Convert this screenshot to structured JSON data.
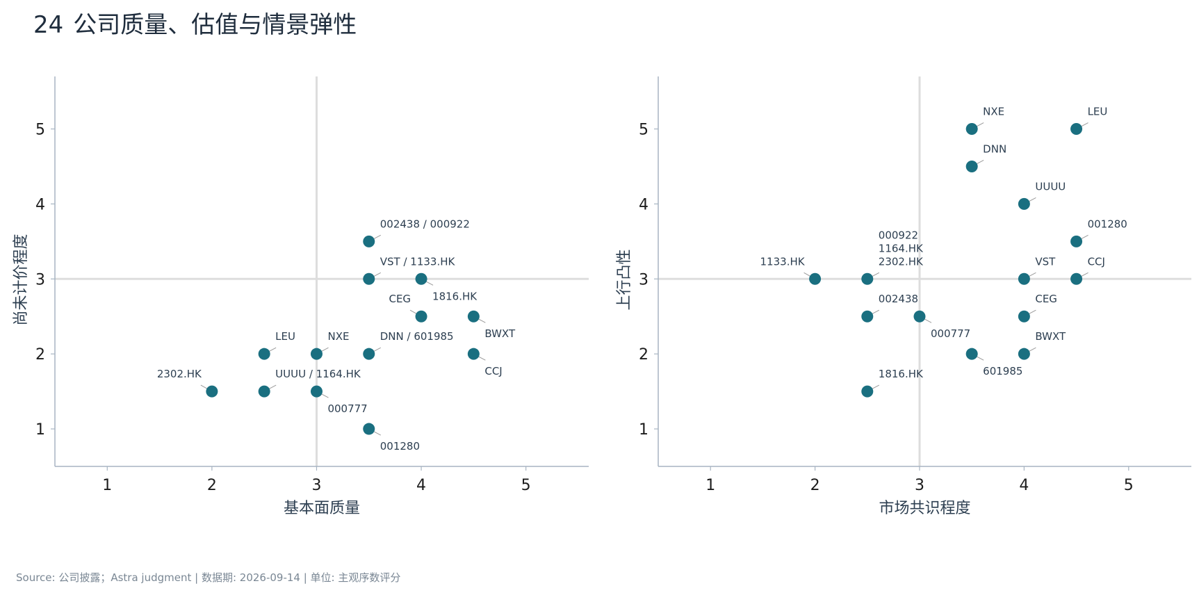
{
  "page": {
    "title_number": "24",
    "title_text": "公司质量、估值与情景弹性",
    "source": "Source: 公司披露；Astra judgment | 数据期: 2026-09-14 | 单位: 主观序数评分"
  },
  "colors": {
    "point": "#1a6f80",
    "reference_line": "#dddddd",
    "axis": "#a7b4c2",
    "leader": "#999999"
  },
  "chart_data": [
    {
      "type": "scatter",
      "xlabel": "基本面质量",
      "ylabel": "尚未计价程度",
      "xlim": [
        0.5,
        5.6
      ],
      "ylim": [
        0.5,
        5.7
      ],
      "xticks": [
        1,
        2,
        3,
        4,
        5
      ],
      "yticks": [
        1,
        2,
        3,
        4,
        5
      ],
      "reference_lines": {
        "x": 3,
        "y": 3
      },
      "grid": false,
      "points": [
        {
          "label": "002438 / 000922",
          "x": 3.5,
          "y": 3.5,
          "anchor": "ne"
        },
        {
          "label": "VST / 1133.HK",
          "x": 3.5,
          "y": 3,
          "anchor": "ne"
        },
        {
          "label": "1816.HK",
          "x": 4,
          "y": 3,
          "anchor": "se"
        },
        {
          "label": "CEG",
          "x": 4,
          "y": 2.5,
          "anchor": "nw"
        },
        {
          "label": "BWXT",
          "x": 4.5,
          "y": 2.5,
          "anchor": "se"
        },
        {
          "label": "LEU",
          "x": 2.5,
          "y": 2,
          "anchor": "ne"
        },
        {
          "label": "NXE",
          "x": 3,
          "y": 2,
          "anchor": "ne"
        },
        {
          "label": "DNN / 601985",
          "x": 3.5,
          "y": 2,
          "anchor": "ne"
        },
        {
          "label": "CCJ",
          "x": 4.5,
          "y": 2,
          "anchor": "se"
        },
        {
          "label": "2302.HK",
          "x": 2,
          "y": 1.5,
          "anchor": "nw"
        },
        {
          "label": "UUUU / 1164.HK",
          "x": 2.5,
          "y": 1.5,
          "anchor": "ne"
        },
        {
          "label": "000777",
          "x": 3,
          "y": 1.5,
          "anchor": "se"
        },
        {
          "label": "001280",
          "x": 3.5,
          "y": 1,
          "anchor": "se"
        }
      ]
    },
    {
      "type": "scatter",
      "xlabel": "市场共识程度",
      "ylabel": "上行凸性",
      "xlim": [
        0.5,
        5.6
      ],
      "ylim": [
        0.5,
        5.7
      ],
      "xticks": [
        1,
        2,
        3,
        4,
        5
      ],
      "yticks": [
        1,
        2,
        3,
        4,
        5
      ],
      "reference_lines": {
        "x": 3,
        "y": 3
      },
      "grid": false,
      "points": [
        {
          "label": "NXE",
          "x": 3.5,
          "y": 5,
          "anchor": "ne"
        },
        {
          "label": "LEU",
          "x": 4.5,
          "y": 5,
          "anchor": "ne"
        },
        {
          "label": "DNN",
          "x": 3.5,
          "y": 4.5,
          "anchor": "ne"
        },
        {
          "label": "UUUU",
          "x": 4,
          "y": 4,
          "anchor": "ne"
        },
        {
          "label": "001280",
          "x": 4.5,
          "y": 3.5,
          "anchor": "ne"
        },
        {
          "label": "1133.HK",
          "x": 2,
          "y": 3,
          "anchor": "nw"
        },
        {
          "label": "000922\n1164.HK\n2302.HK",
          "x": 2.5,
          "y": 3,
          "anchor": "ne"
        },
        {
          "label": "VST",
          "x": 4,
          "y": 3,
          "anchor": "ne"
        },
        {
          "label": "CCJ",
          "x": 4.5,
          "y": 3,
          "anchor": "ne"
        },
        {
          "label": "002438",
          "x": 2.5,
          "y": 2.5,
          "anchor": "ne"
        },
        {
          "label": "000777",
          "x": 3,
          "y": 2.5,
          "anchor": "se"
        },
        {
          "label": "CEG",
          "x": 4,
          "y": 2.5,
          "anchor": "ne"
        },
        {
          "label": "601985",
          "x": 3.5,
          "y": 2,
          "anchor": "se"
        },
        {
          "label": "BWXT",
          "x": 4,
          "y": 2,
          "anchor": "ne"
        },
        {
          "label": "1816.HK",
          "x": 2.5,
          "y": 1.5,
          "anchor": "ne"
        }
      ]
    }
  ]
}
